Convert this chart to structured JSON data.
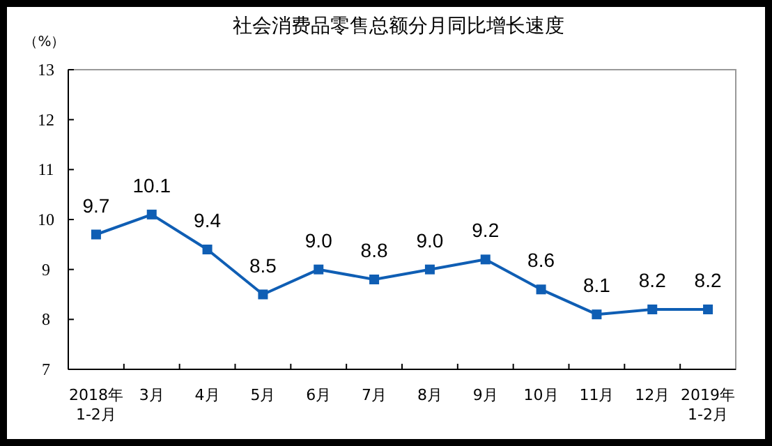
{
  "chart_data": {
    "type": "line",
    "title": "社会消费品零售总额分月同比增长速度",
    "ylabel": "（%）",
    "categories": [
      "2018年\n1-2月",
      "3月",
      "4月",
      "5月",
      "6月",
      "7月",
      "8月",
      "9月",
      "10月",
      "11月",
      "12月",
      "2019年\n1-2月"
    ],
    "series": [
      {
        "color": "#0f5eb4",
        "values": [
          9.7,
          10.1,
          9.4,
          8.5,
          9.0,
          8.8,
          9.0,
          9.2,
          8.6,
          8.1,
          8.2,
          8.2
        ]
      }
    ],
    "value_labels": [
      "9.7",
      "10.1",
      "9.4",
      "8.5",
      "9.0",
      "8.8",
      "9.0",
      "9.2",
      "8.6",
      "8.1",
      "8.2",
      "8.2"
    ],
    "ylim": [
      7,
      13
    ],
    "yticks": [
      7,
      8,
      9,
      10,
      11,
      12,
      13
    ],
    "marker": "square",
    "line_style": "solid",
    "grid": false
  }
}
